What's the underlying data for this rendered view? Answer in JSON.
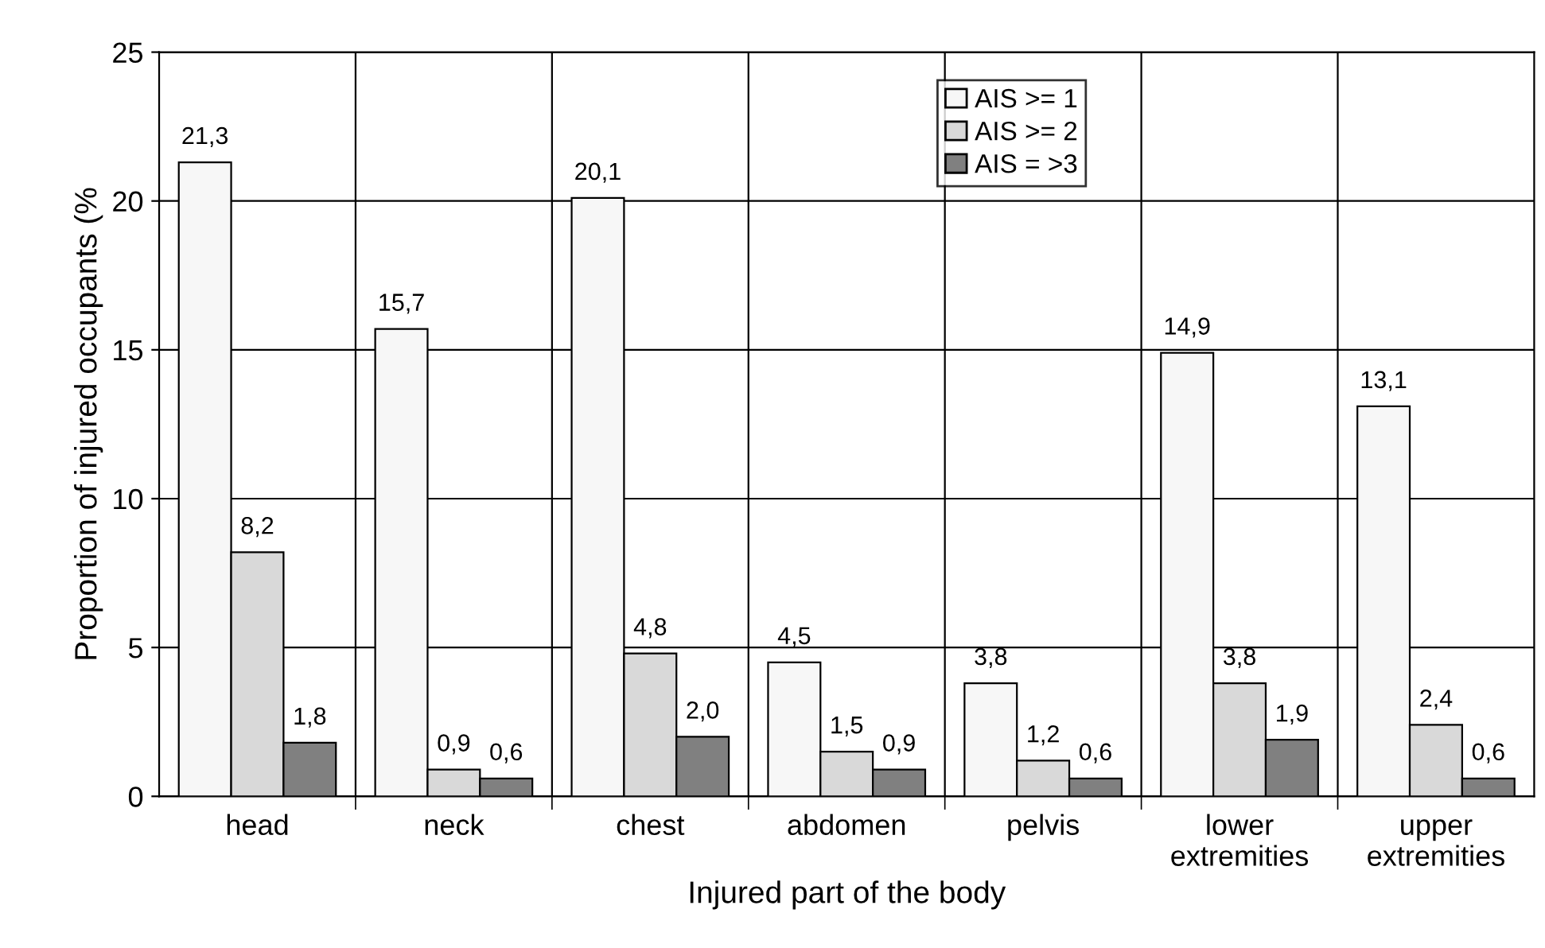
{
  "chart_data": {
    "type": "bar",
    "xlabel": "Injured part of the body",
    "ylabel": "Proportion of injured occupants (%",
    "categories": [
      "head",
      "neck",
      "chest",
      "abdomen",
      "pelvis",
      "lower\nextremities",
      "upper\nextremities"
    ],
    "series": [
      {
        "name": "AIS >= 1",
        "color": "#f7f7f7",
        "values": [
          21.3,
          15.7,
          20.1,
          4.5,
          3.8,
          14.9,
          13.1
        ],
        "value_labels": [
          "21,3",
          "15,7",
          "20,1",
          "4,5",
          "3,8",
          "14,9",
          "13,1"
        ]
      },
      {
        "name": "AIS >= 2",
        "color": "#d9d9d9",
        "values": [
          8.2,
          0.9,
          4.8,
          1.5,
          1.2,
          3.8,
          2.4
        ],
        "value_labels": [
          "8,2",
          "0,9",
          "4,8",
          "1,5",
          "1,2",
          "3,8",
          "2,4"
        ]
      },
      {
        "name": "AIS = >3",
        "color": "#808080",
        "values": [
          1.8,
          0.6,
          2.0,
          0.9,
          0.6,
          1.9,
          0.6
        ],
        "value_labels": [
          "1,8",
          "0,6",
          "2,0",
          "0,9",
          "0,6",
          "1,9",
          "0,6"
        ]
      }
    ],
    "ylim": [
      0,
      25
    ],
    "yticks": [
      0,
      5,
      10,
      15,
      20,
      25
    ],
    "grid": true,
    "legend": "top"
  }
}
